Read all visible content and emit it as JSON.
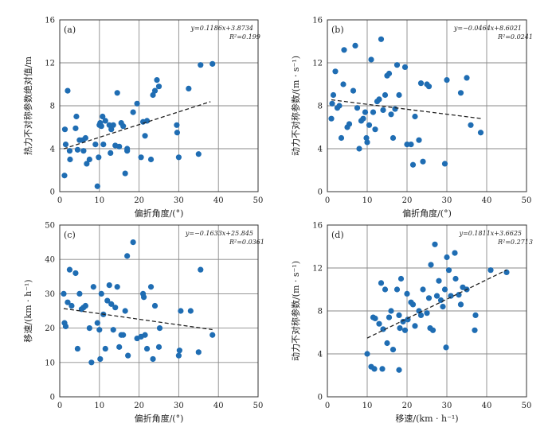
{
  "chart_data": [
    {
      "type": "scatter",
      "panel_label": "(a)",
      "xlabel": "偏折角度/(°)",
      "ylabel": "热力不对称参数绝对值/m",
      "xlim": [
        0,
        50
      ],
      "ylim": [
        0,
        16
      ],
      "xticks": [
        0,
        10,
        20,
        30,
        40,
        50
      ],
      "yticks": [
        0,
        4,
        8,
        12,
        16
      ],
      "grid": true,
      "equation": "y=0.1186x+3.8734",
      "r2": "R²=0.199",
      "trend": {
        "x1": 1,
        "x2": 38
      },
      "points": [
        [
          1.2,
          1.5
        ],
        [
          1.3,
          5.8
        ],
        [
          1.5,
          4.4
        ],
        [
          2.0,
          9.4
        ],
        [
          2.5,
          3.8
        ],
        [
          2.6,
          3.0
        ],
        [
          4.0,
          5.9
        ],
        [
          4.2,
          7.0
        ],
        [
          4.5,
          3.9
        ],
        [
          5.0,
          4.8
        ],
        [
          5.8,
          4.8
        ],
        [
          6.0,
          3.8
        ],
        [
          6.5,
          5.0
        ],
        [
          6.8,
          2.6
        ],
        [
          7.5,
          3.0
        ],
        [
          9.0,
          4.4
        ],
        [
          9.5,
          0.5
        ],
        [
          9.8,
          3.2
        ],
        [
          10.0,
          6.2
        ],
        [
          10.2,
          6.4
        ],
        [
          10.5,
          6.1
        ],
        [
          10.8,
          7.0
        ],
        [
          11.0,
          4.4
        ],
        [
          11.5,
          6.6
        ],
        [
          12.5,
          6.2
        ],
        [
          12.8,
          3.6
        ],
        [
          13.0,
          5.8
        ],
        [
          13.5,
          6.2
        ],
        [
          14.0,
          4.3
        ],
        [
          14.5,
          9.2
        ],
        [
          15.0,
          4.2
        ],
        [
          15.5,
          6.4
        ],
        [
          16.0,
          6.1
        ],
        [
          16.5,
          1.7
        ],
        [
          17.0,
          4.0
        ],
        [
          17.0,
          3.8
        ],
        [
          18.5,
          7.4
        ],
        [
          19.5,
          8.2
        ],
        [
          20.5,
          3.2
        ],
        [
          21.0,
          6.5
        ],
        [
          21.5,
          5.2
        ],
        [
          22.0,
          6.6
        ],
        [
          23.0,
          3.0
        ],
        [
          23.5,
          9.0
        ],
        [
          24.0,
          9.4
        ],
        [
          24.5,
          10.4
        ],
        [
          25.0,
          9.8
        ],
        [
          29.5,
          6.2
        ],
        [
          29.6,
          5.5
        ],
        [
          30.0,
          3.2
        ],
        [
          32.5,
          9.6
        ],
        [
          35.0,
          3.5
        ],
        [
          35.5,
          11.8
        ],
        [
          38.5,
          11.9
        ]
      ]
    },
    {
      "type": "scatter",
      "panel_label": "(b)",
      "xlabel": "偏折角度/(°)",
      "ylabel": "动力不对称参数/(m · s⁻¹)",
      "xlim": [
        0,
        50
      ],
      "ylim": [
        0,
        16
      ],
      "xticks": [
        0,
        10,
        20,
        30,
        40,
        50
      ],
      "yticks": [
        0,
        4,
        8,
        12,
        16
      ],
      "grid": true,
      "equation": "y=−0.0464x+8.6021",
      "r2": "R²=0.0241",
      "trend": {
        "x1": 1,
        "x2": 39
      },
      "points": [
        [
          1.0,
          6.8
        ],
        [
          1.2,
          8.2
        ],
        [
          1.5,
          9.0
        ],
        [
          2.0,
          11.2
        ],
        [
          2.5,
          7.8
        ],
        [
          3.0,
          8.0
        ],
        [
          3.5,
          5.0
        ],
        [
          4.0,
          10.0
        ],
        [
          4.2,
          13.2
        ],
        [
          5.0,
          6.0
        ],
        [
          5.5,
          6.3
        ],
        [
          6.5,
          9.4
        ],
        [
          7.0,
          13.6
        ],
        [
          7.5,
          7.8
        ],
        [
          8.0,
          4.0
        ],
        [
          8.5,
          6.6
        ],
        [
          9.0,
          6.8
        ],
        [
          9.5,
          7.4
        ],
        [
          9.8,
          5.0
        ],
        [
          10.0,
          4.6
        ],
        [
          10.5,
          6.2
        ],
        [
          11.0,
          12.3
        ],
        [
          11.5,
          7.4
        ],
        [
          12.0,
          5.8
        ],
        [
          12.5,
          8.4
        ],
        [
          13.0,
          8.6
        ],
        [
          13.5,
          14.2
        ],
        [
          14.0,
          7.6
        ],
        [
          14.5,
          9.0
        ],
        [
          15.0,
          10.8
        ],
        [
          15.5,
          11.0
        ],
        [
          16.0,
          7.2
        ],
        [
          16.5,
          5.0
        ],
        [
          17.0,
          7.7
        ],
        [
          17.5,
          11.8
        ],
        [
          18.0,
          9.0
        ],
        [
          19.5,
          11.6
        ],
        [
          20.0,
          4.4
        ],
        [
          21.0,
          4.4
        ],
        [
          21.5,
          2.5
        ],
        [
          22.0,
          7.0
        ],
        [
          23.0,
          4.8
        ],
        [
          24.0,
          2.8
        ],
        [
          25.0,
          10.0
        ],
        [
          25.5,
          9.8
        ],
        [
          23.5,
          10.1
        ],
        [
          29.5,
          2.6
        ],
        [
          30.0,
          10.4
        ],
        [
          33.5,
          9.2
        ],
        [
          35.0,
          10.6
        ],
        [
          36.0,
          6.2
        ],
        [
          38.5,
          5.5
        ]
      ]
    },
    {
      "type": "scatter",
      "panel_label": "(c)",
      "xlabel": "偏折角度/(°)",
      "ylabel": "移速/(km · h⁻¹)",
      "xlim": [
        0,
        50
      ],
      "ylim": [
        0,
        50
      ],
      "xticks": [
        0,
        10,
        20,
        30,
        40,
        50
      ],
      "yticks": [
        0,
        10,
        20,
        30,
        40,
        50
      ],
      "grid": true,
      "equation": "y=−0.1633x+25.845",
      "r2": "R²=0.0361",
      "trend": {
        "x1": 1,
        "x2": 38.5
      },
      "points": [
        [
          1.0,
          30.0
        ],
        [
          1.2,
          21.5
        ],
        [
          1.5,
          20.5
        ],
        [
          2.0,
          27.5
        ],
        [
          2.5,
          37.0
        ],
        [
          3.0,
          26.5
        ],
        [
          4.0,
          36.0
        ],
        [
          4.5,
          14.0
        ],
        [
          5.0,
          30.0
        ],
        [
          5.5,
          25.5
        ],
        [
          6.0,
          26.0
        ],
        [
          6.5,
          26.5
        ],
        [
          7.5,
          20.0
        ],
        [
          8.0,
          10.0
        ],
        [
          8.5,
          32.0
        ],
        [
          9.5,
          21.5
        ],
        [
          10.0,
          19.5
        ],
        [
          10.2,
          11.0
        ],
        [
          10.5,
          30.0
        ],
        [
          11.0,
          24.0
        ],
        [
          11.5,
          14.0
        ],
        [
          12.0,
          28.0
        ],
        [
          12.5,
          32.5
        ],
        [
          13.0,
          27.0
        ],
        [
          13.5,
          19.5
        ],
        [
          14.0,
          26.0
        ],
        [
          14.5,
          32.0
        ],
        [
          15.0,
          14.5
        ],
        [
          15.5,
          18.0
        ],
        [
          16.0,
          18.0
        ],
        [
          16.5,
          25.0
        ],
        [
          17.0,
          41.0
        ],
        [
          17.2,
          12.0
        ],
        [
          18.5,
          45.0
        ],
        [
          19.5,
          17.0
        ],
        [
          20.5,
          17.5
        ],
        [
          21.0,
          30.0
        ],
        [
          21.2,
          29.0
        ],
        [
          21.5,
          18.0
        ],
        [
          22.0,
          14.0
        ],
        [
          23.0,
          32.0
        ],
        [
          23.5,
          11.0
        ],
        [
          24.0,
          26.5
        ],
        [
          25.0,
          14.5
        ],
        [
          25.2,
          20.0
        ],
        [
          30.0,
          12.0
        ],
        [
          30.2,
          13.5
        ],
        [
          30.5,
          25.0
        ],
        [
          33.0,
          25.0
        ],
        [
          35.0,
          13.0
        ],
        [
          35.5,
          37.0
        ],
        [
          38.5,
          18.0
        ]
      ]
    },
    {
      "type": "scatter",
      "panel_label": "(d)",
      "xlabel": "移速/(km · h⁻¹)",
      "ylabel": "动力不对称参数/(m · s⁻¹)",
      "xlim": [
        0,
        50
      ],
      "ylim": [
        0,
        16
      ],
      "xticks": [
        0,
        10,
        20,
        30,
        40,
        50
      ],
      "yticks": [
        0,
        4,
        8,
        12,
        16
      ],
      "grid": true,
      "equation": "y=0.1811x+3.6625",
      "r2": "R²=0.2713",
      "trend": {
        "x1": 10,
        "x2": 45
      },
      "points": [
        [
          10.0,
          4.0
        ],
        [
          11.0,
          2.8
        ],
        [
          11.5,
          7.4
        ],
        [
          11.8,
          2.6
        ],
        [
          12.0,
          7.3
        ],
        [
          13.0,
          6.8
        ],
        [
          13.5,
          10.6
        ],
        [
          13.8,
          2.6
        ],
        [
          14.0,
          6.3
        ],
        [
          14.5,
          10.0
        ],
        [
          15.0,
          5.0
        ],
        [
          15.5,
          7.4
        ],
        [
          16.0,
          8.0
        ],
        [
          16.5,
          4.4
        ],
        [
          17.5,
          10.0
        ],
        [
          18.0,
          2.5
        ],
        [
          18.0,
          7.6
        ],
        [
          18.2,
          6.4
        ],
        [
          18.5,
          11.0
        ],
        [
          19.0,
          7.0
        ],
        [
          19.5,
          6.2
        ],
        [
          20.0,
          9.6
        ],
        [
          20.2,
          7.2
        ],
        [
          21.0,
          8.8
        ],
        [
          21.5,
          8.6
        ],
        [
          22.0,
          6.6
        ],
        [
          23.0,
          8.0
        ],
        [
          23.5,
          7.6
        ],
        [
          24.0,
          10.0
        ],
        [
          25.0,
          7.8
        ],
        [
          25.5,
          9.2
        ],
        [
          25.8,
          6.4
        ],
        [
          26.0,
          12.3
        ],
        [
          26.5,
          6.2
        ],
        [
          27.0,
          14.2
        ],
        [
          27.5,
          9.4
        ],
        [
          28.0,
          10.8
        ],
        [
          28.5,
          9.0
        ],
        [
          29.0,
          8.4
        ],
        [
          29.5,
          10.0
        ],
        [
          29.8,
          4.6
        ],
        [
          30.0,
          13.0
        ],
        [
          30.5,
          11.8
        ],
        [
          31.0,
          9.4
        ],
        [
          32.0,
          13.4
        ],
        [
          32.2,
          11.0
        ],
        [
          33.0,
          9.5
        ],
        [
          33.5,
          8.6
        ],
        [
          34.0,
          10.2
        ],
        [
          35.0,
          10.0
        ],
        [
          37.0,
          6.2
        ],
        [
          37.2,
          7.6
        ],
        [
          41.0,
          11.8
        ],
        [
          45.0,
          11.6
        ]
      ]
    }
  ]
}
